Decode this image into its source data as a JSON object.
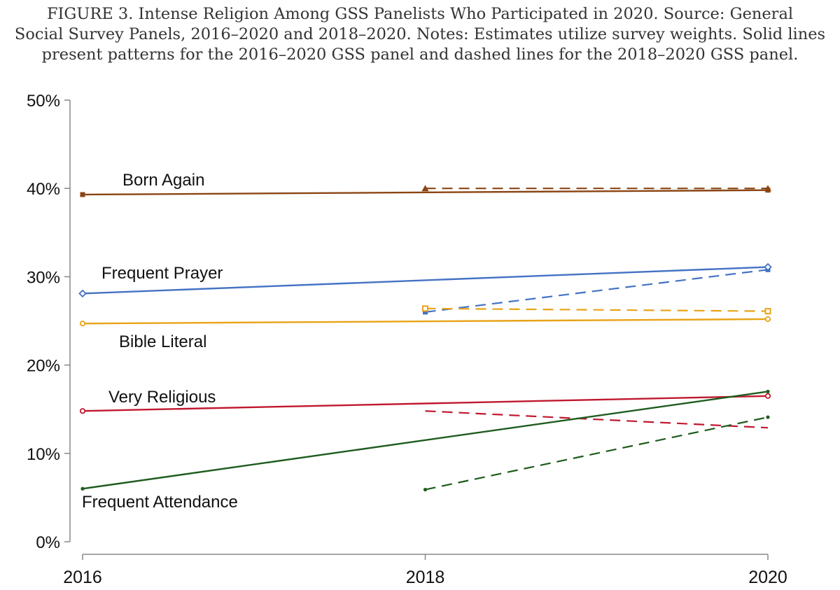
{
  "caption": {
    "line1": "FIGURE 3.    Intense Religion Among GSS Panelists Who Participated in 2020. Source: General",
    "line2": "Social Survey Panels, 2016–2020 and 2018–2020. Notes: Estimates utilize survey weights. Solid lines",
    "line3": "present patterns for the 2016–2020 GSS panel and dashed lines for the 2018–2020 GSS panel."
  },
  "chart_data": {
    "type": "line",
    "title": "Intense Religion Among GSS Panelists Who Participated in 2020",
    "xlabel": "",
    "ylabel": "",
    "x": [
      2016,
      2018,
      2020
    ],
    "xlim": [
      2016,
      2020
    ],
    "ylim": [
      0,
      50
    ],
    "y_ticks": [
      {
        "value": 0,
        "label": "0%"
      },
      {
        "value": 10,
        "label": "10%"
      },
      {
        "value": 20,
        "label": "20%"
      },
      {
        "value": 30,
        "label": "30%"
      },
      {
        "value": 40,
        "label": "40%"
      },
      {
        "value": 50,
        "label": "50%"
      }
    ],
    "x_ticks": [
      {
        "value": 2016,
        "label": "2016"
      },
      {
        "value": 2018,
        "label": "2018"
      },
      {
        "value": 2020,
        "label": "2020"
      }
    ],
    "grid": false,
    "series": [
      {
        "key": "born-again",
        "name": "Born Again",
        "color": "#8B4513",
        "marker": "square",
        "solid": {
          "x": [
            2016,
            2020
          ],
          "values": [
            39.3,
            39.8
          ]
        },
        "dashed": {
          "x": [
            2018,
            2020
          ],
          "values": [
            40.0,
            40.0
          ],
          "marker": "triangle"
        }
      },
      {
        "key": "frequent-prayer",
        "name": "Frequent Prayer",
        "color": "#4472C4",
        "marker": "diamond",
        "solid": {
          "x": [
            2016,
            2020
          ],
          "values": [
            28.1,
            31.1
          ]
        },
        "dashed": {
          "x": [
            2018,
            2020
          ],
          "values": [
            26.0,
            30.8
          ],
          "marker": "square"
        }
      },
      {
        "key": "bible-literal",
        "name": "Bible Literal",
        "color": "#E8A317",
        "marker": "circle",
        "solid": {
          "x": [
            2016,
            2020
          ],
          "values": [
            24.7,
            25.2
          ]
        },
        "dashed": {
          "x": [
            2018,
            2020
          ],
          "values": [
            26.4,
            26.1
          ],
          "marker": "square"
        }
      },
      {
        "key": "very-religious",
        "name": "Very Religious",
        "color": "#C0182F",
        "marker": "circle",
        "solid": {
          "x": [
            2016,
            2020
          ],
          "values": [
            14.8,
            16.5
          ]
        },
        "dashed": {
          "x": [
            2018,
            2020
          ],
          "values": [
            14.8,
            12.9
          ],
          "marker": "none"
        }
      },
      {
        "key": "frequent-attendance",
        "name": "Frequent Attendance",
        "color": "#1E5C1E",
        "marker": "dot",
        "solid": {
          "x": [
            2016,
            2020
          ],
          "values": [
            6.0,
            17.0
          ]
        },
        "dashed": {
          "x": [
            2018,
            2020
          ],
          "values": [
            5.9,
            14.1
          ],
          "marker": "dot"
        }
      }
    ]
  }
}
